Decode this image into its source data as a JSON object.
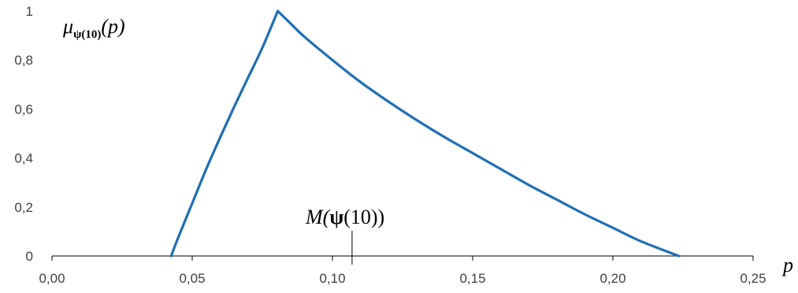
{
  "colors": {
    "series": "#1f6fb4",
    "axis": "#000000",
    "tick_text": "#404040"
  },
  "chart_data": {
    "type": "line",
    "title": "",
    "xlabel": "p",
    "ylabel": {
      "symbol": "μ",
      "subscript": "ψ(10)",
      "argument": "(p)"
    },
    "xlim": [
      0,
      0.25
    ],
    "ylim": [
      0,
      1
    ],
    "grid": false,
    "legend": "none",
    "x_ticks": [
      0,
      0.05,
      0.1,
      0.15,
      0.2,
      0.25
    ],
    "x_tick_labels": [
      "0,00",
      "0,05",
      "0,10",
      "0,15",
      "0,20",
      "0,25"
    ],
    "y_ticks": [
      0,
      0.2,
      0.4,
      0.6,
      0.8,
      1
    ],
    "y_tick_labels": [
      "0",
      "0,2",
      "0,4",
      "0,6",
      "0,8",
      "1"
    ],
    "series": [
      {
        "x": [
          0.0425,
          0.045,
          0.05,
          0.055,
          0.06,
          0.065,
          0.07,
          0.075,
          0.0805,
          0.085,
          0.09,
          0.1,
          0.11,
          0.12,
          0.13,
          0.14,
          0.15,
          0.16,
          0.17,
          0.18,
          0.19,
          0.2,
          0.21,
          0.2235
        ],
        "y": [
          0.0,
          0.075,
          0.215,
          0.355,
          0.485,
          0.61,
          0.73,
          0.85,
          1.0,
          0.95,
          0.895,
          0.8,
          0.71,
          0.63,
          0.555,
          0.485,
          0.42,
          0.355,
          0.29,
          0.23,
          0.17,
          0.115,
          0.06,
          0.0
        ]
      }
    ],
    "annotations": [
      {
        "x": 0.107,
        "label_text": {
          "before": "M(",
          "bold": "ψ",
          "after": "(10))"
        }
      }
    ]
  }
}
